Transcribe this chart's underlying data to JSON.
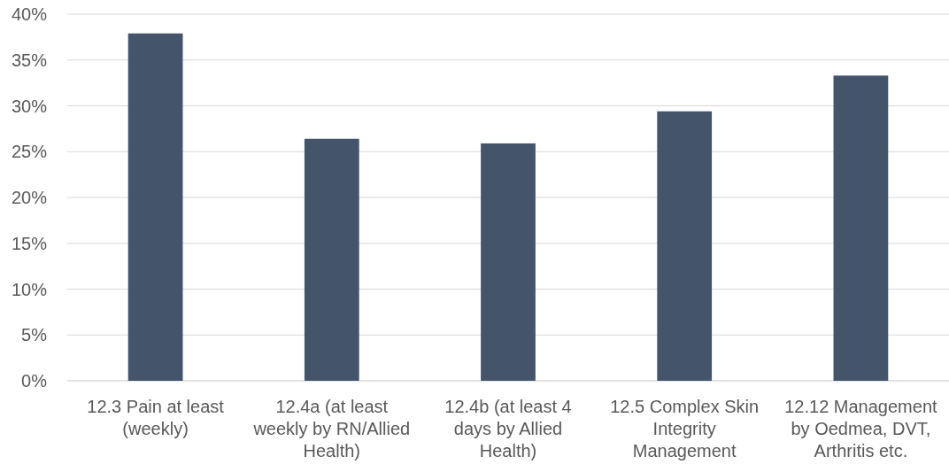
{
  "chart_data": {
    "type": "bar",
    "categories": [
      "12.3 Pain at least (weekly)",
      "12.4a (at least weekly by RN/Allied Health)",
      "12.4b (at least 4 days by Allied Health)",
      "12.5 Complex Skin Integrity Management",
      "12.12 Management by Oedmea, DVT, Arthritis etc."
    ],
    "values": [
      37.9,
      26.4,
      25.9,
      29.4,
      33.3
    ],
    "color": "#44546a",
    "ylim": [
      0,
      40
    ],
    "yticks": [
      {
        "value": 0,
        "label": "0%"
      },
      {
        "value": 5,
        "label": "5%"
      },
      {
        "value": 10,
        "label": "10%"
      },
      {
        "value": 15,
        "label": "15%"
      },
      {
        "value": 20,
        "label": "20%"
      },
      {
        "value": 25,
        "label": "25%"
      },
      {
        "value": 30,
        "label": "30%"
      },
      {
        "value": 35,
        "label": "35%"
      },
      {
        "value": 40,
        "label": "40%"
      }
    ],
    "grid": "y"
  }
}
